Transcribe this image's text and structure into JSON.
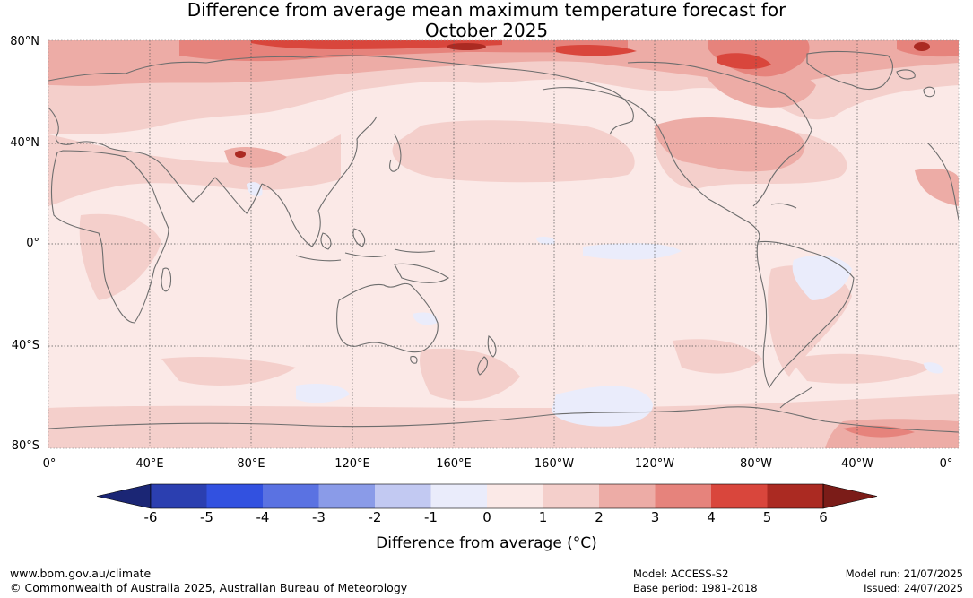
{
  "title": {
    "line1": "Difference from average mean maximum temperature forecast for",
    "line2": "October 2025"
  },
  "map": {
    "lat_ticks": [
      "80°N",
      "40°N",
      "0°",
      "40°S",
      "80°S"
    ],
    "lon_ticks": [
      "0°",
      "40°E",
      "80°E",
      "120°E",
      "160°E",
      "160°W",
      "120°W",
      "80°W",
      "40°W",
      "0°"
    ],
    "graticule": "dotted"
  },
  "colorbar": {
    "title": "Difference from average (°C)",
    "tick_labels": [
      "-6",
      "-5",
      "-4",
      "-3",
      "-2",
      "-1",
      "0",
      "1",
      "2",
      "3",
      "4",
      "5",
      "6"
    ],
    "colors": [
      "#1b2675",
      "#2b3fb0",
      "#3251e0",
      "#5a72e2",
      "#8a9be8",
      "#c2c9f2",
      "#eaecfb",
      "#fbe9e7",
      "#f4cfcb",
      "#edaca6",
      "#e6837c",
      "#d9463c",
      "#ab2a22",
      "#7b1c18"
    ],
    "extend": "both"
  },
  "footer": {
    "url": "www.bom.gov.au/climate",
    "copyright": "© Commonwealth of Australia 2025, Australian Bureau of Meteorology",
    "model": "Model: ACCESS-S2",
    "base_period": "Base period: 1981-2018",
    "model_run": "Model run: 21/07/2025",
    "issued": "Issued: 24/07/2025"
  }
}
